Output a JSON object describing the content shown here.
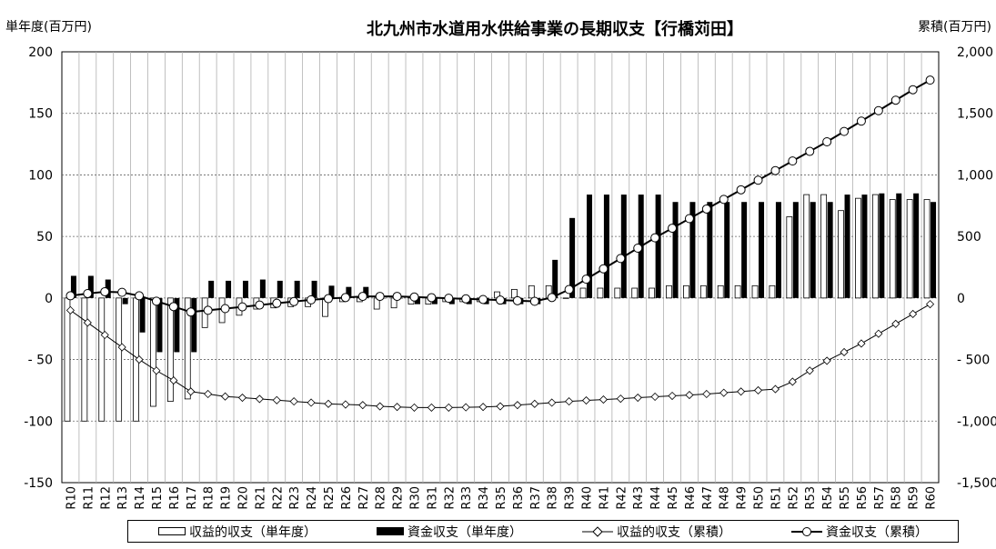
{
  "chart_data": {
    "type": "bar",
    "title": "北九州市水道用水供給事業の長期収支【行橋苅田】",
    "left_axis_label": "単年度(百万円)",
    "right_axis_label": "累積(百万円)",
    "left_ticks": [
      "200",
      "150",
      "100",
      "50",
      "0",
      "- 50",
      "-100",
      "-150"
    ],
    "right_ticks": [
      "2,000",
      "1,500",
      "1,000",
      "500",
      "0",
      "- 500",
      "-1,000",
      "-1,500"
    ],
    "ylim_left": [
      -150,
      200
    ],
    "ylim_right": [
      -1500,
      2000
    ],
    "grid": true,
    "legend_placement": "bottom",
    "categories": [
      "R10",
      "R11",
      "R12",
      "R13",
      "R14",
      "R15",
      "R16",
      "R17",
      "R18",
      "R19",
      "R20",
      "R21",
      "R22",
      "R23",
      "R24",
      "R25",
      "R26",
      "R27",
      "R28",
      "R29",
      "R30",
      "R31",
      "R32",
      "R33",
      "R34",
      "R35",
      "R36",
      "R37",
      "R38",
      "R39",
      "R40",
      "R41",
      "R42",
      "R43",
      "R44",
      "R45",
      "R46",
      "R47",
      "R48",
      "R49",
      "R50",
      "R51",
      "R52",
      "R53",
      "R54",
      "R55",
      "R56",
      "R57",
      "R58",
      "R59",
      "R60"
    ],
    "series": [
      {
        "name": "収益的収支（単年度）",
        "kind": "bar-open",
        "axis": "left",
        "values": [
          -100,
          -100,
          -100,
          -100,
          -100,
          -88,
          -84,
          -82,
          -24,
          -20,
          -14,
          -9,
          -8,
          -7,
          -7,
          -15,
          -3,
          -3,
          -9,
          -8,
          -5,
          -5,
          -3,
          -3,
          -3,
          5,
          7,
          10,
          10,
          0,
          8,
          8,
          8,
          8,
          8,
          10,
          10,
          10,
          10,
          10,
          10,
          10,
          66,
          84,
          84,
          71,
          81,
          84,
          80,
          80,
          80
        ]
      },
      {
        "name": "資金収支（単年度）",
        "kind": "bar-solid",
        "axis": "left",
        "values": [
          18,
          18,
          15,
          -5,
          -28,
          -44,
          -44,
          -44,
          14,
          14,
          14,
          15,
          14,
          14,
          14,
          10,
          9,
          9,
          0,
          0,
          -5,
          -5,
          -5,
          -5,
          -5,
          -5,
          -5,
          -5,
          31,
          65,
          84,
          84,
          84,
          84,
          84,
          78,
          78,
          78,
          78,
          78,
          78,
          78,
          78,
          78,
          78,
          84,
          84,
          85,
          85,
          85,
          78
        ]
      },
      {
        "name": "収益的収支（累積）",
        "kind": "line-diamond",
        "axis": "right",
        "values": [
          -100,
          -200,
          -300,
          -400,
          -500,
          -590,
          -670,
          -760,
          -780,
          -800,
          -810,
          -820,
          -830,
          -840,
          -850,
          -860,
          -865,
          -870,
          -880,
          -885,
          -890,
          -890,
          -890,
          -888,
          -885,
          -880,
          -870,
          -860,
          -850,
          -840,
          -832,
          -825,
          -818,
          -810,
          -802,
          -795,
          -788,
          -780,
          -770,
          -760,
          -750,
          -740,
          -680,
          -590,
          -510,
          -440,
          -370,
          -290,
          -210,
          -130,
          -50
        ]
      },
      {
        "name": "資金収支（累積）",
        "kind": "line-circle",
        "axis": "right",
        "values": [
          18,
          36,
          51,
          46,
          18,
          -26,
          -70,
          -114,
          -100,
          -86,
          -72,
          -57,
          -43,
          -29,
          -15,
          -5,
          4,
          13,
          13,
          13,
          8,
          3,
          -2,
          -7,
          -12,
          -17,
          -22,
          -27,
          4,
          69,
          153,
          237,
          321,
          405,
          489,
          567,
          645,
          723,
          801,
          879,
          957,
          1035,
          1113,
          1191,
          1269,
          1353,
          1437,
          1522,
          1607,
          1692,
          1770
        ]
      }
    ]
  }
}
